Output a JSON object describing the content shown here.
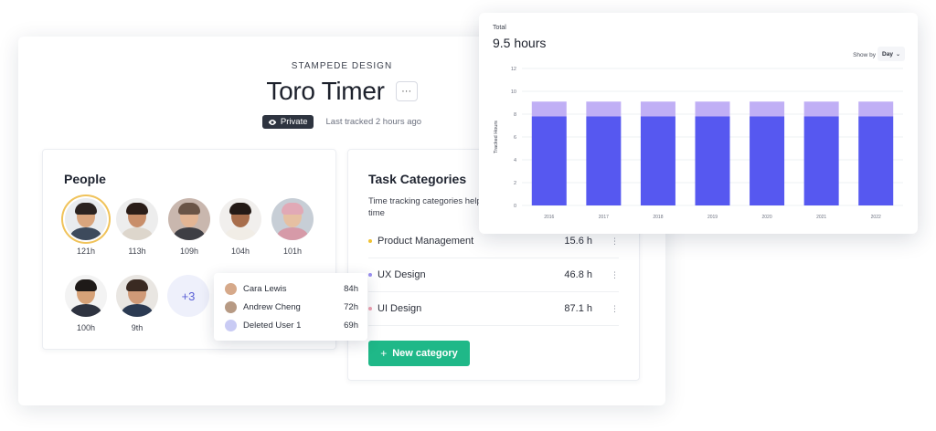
{
  "project": {
    "workspace": "STAMPEDE DESIGN",
    "title": "Toro Timer",
    "more_label": "···",
    "private_label": "Private",
    "last_tracked": "Last tracked 2 hours ago"
  },
  "people": {
    "title": "People",
    "members": [
      {
        "hours": "121h",
        "skin": "#d9a57d",
        "hair": "#2b2320",
        "shirt": "#3d4a5c",
        "bg": "#e9ecef",
        "active": true
      },
      {
        "hours": "113h",
        "skin": "#c88e6a",
        "hair": "#2a1d18",
        "shirt": "#ddd6cc",
        "bg": "#ededed",
        "active": false
      },
      {
        "hours": "109h",
        "skin": "#e3b594",
        "hair": "#6a5446",
        "shirt": "#3e3e44",
        "bg": "#c9b7ae",
        "active": false
      },
      {
        "hours": "104h",
        "skin": "#a86e4c",
        "hair": "#241a16",
        "shirt": "#f1ede6",
        "bg": "#f1efed",
        "active": false
      },
      {
        "hours": "101h",
        "skin": "#e6c0a2",
        "hair": "#e1a9b6",
        "shirt": "#d69aa8",
        "bg": "#c7ced6",
        "active": false
      },
      {
        "hours": "100h",
        "skin": "#d6a278",
        "hair": "#1e1a18",
        "shirt": "#2e3340",
        "bg": "#f3f3f3",
        "active": false
      },
      {
        "hours": "9th",
        "skin": "#d09a78",
        "hair": "#3a2a22",
        "shirt": "#2b3a52",
        "bg": "#e9e6e2",
        "active": false
      }
    ],
    "more_count": "+3"
  },
  "tooltip": {
    "rows": [
      {
        "name": "Cara Lewis",
        "value": "84h",
        "color": "#d6a98a"
      },
      {
        "name": "Andrew Cheng",
        "value": "72h",
        "color": "#b79a84"
      },
      {
        "name": "Deleted User 1",
        "value": "69h",
        "color": "#c9cbf4"
      }
    ]
  },
  "tasks": {
    "title": "Task Categories",
    "description": "Time tracking categories help p time",
    "categories": [
      {
        "name": "Product Management",
        "value": "15.6 h",
        "color": "#f0c232"
      },
      {
        "name": "UX Design",
        "value": "46.8 h",
        "color": "#9a8ff0"
      },
      {
        "name": "UI Design",
        "value": "87.1 h",
        "color": "#f0a0b0"
      }
    ],
    "new_button": "New category",
    "kebab": "⋮"
  },
  "chart_header": {
    "total_label": "Total",
    "total_value": "9.5 hours",
    "show_by_label": "Show by",
    "show_by_value": "Day"
  },
  "chart_data": {
    "type": "bar",
    "stacked": true,
    "categories": [
      "2016",
      "2017",
      "2018",
      "2019",
      "2020",
      "2021",
      "2022"
    ],
    "series": [
      {
        "values": [
          7.8,
          7.8,
          7.8,
          7.8,
          7.8,
          7.8,
          7.8
        ],
        "color": "#5658f0"
      },
      {
        "values": [
          1.3,
          1.3,
          1.3,
          1.3,
          1.3,
          1.3,
          1.3
        ],
        "color": "#c0aff5"
      }
    ],
    "ylabel": "Tracked Hours",
    "ylim": [
      0,
      12
    ],
    "yticks": [
      0,
      2,
      4,
      6,
      8,
      10,
      12
    ],
    "grid": true
  }
}
